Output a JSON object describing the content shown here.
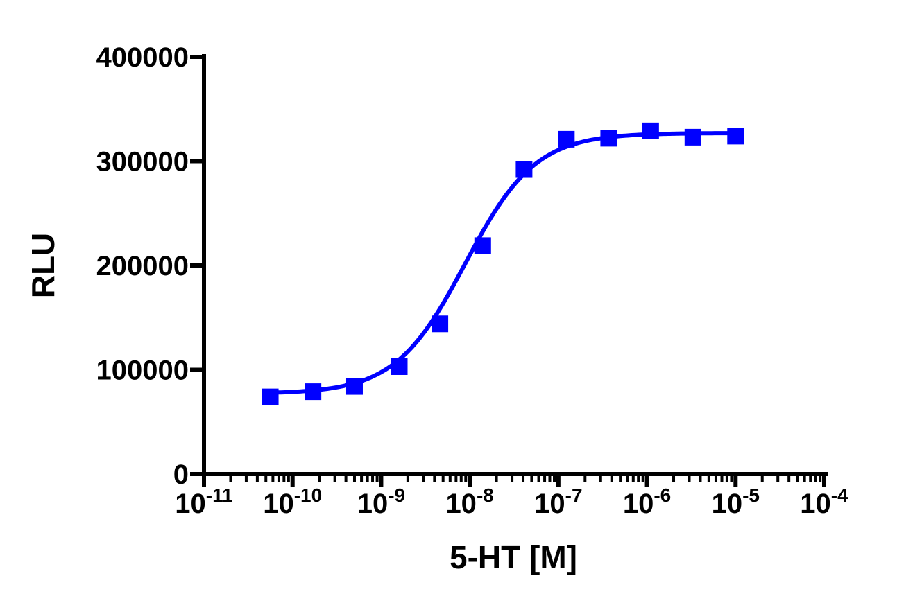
{
  "chart_data": {
    "type": "scatter",
    "title": "",
    "xlabel": "5-HT [M]",
    "ylabel": "RLU",
    "x_scale": "log",
    "xlim": [
      1e-11,
      0.0001
    ],
    "ylim": [
      0,
      400000
    ],
    "x_tick_labels": [
      {
        "base": "10",
        "exp": "-11",
        "value": 1e-11
      },
      {
        "base": "10",
        "exp": "-10",
        "value": 1e-10
      },
      {
        "base": "10",
        "exp": "-9",
        "value": 1e-09
      },
      {
        "base": "10",
        "exp": "-8",
        "value": 1e-08
      },
      {
        "base": "10",
        "exp": "-7",
        "value": 1e-07
      },
      {
        "base": "10",
        "exp": "-6",
        "value": 1e-06
      },
      {
        "base": "10",
        "exp": "-5",
        "value": 1e-05
      },
      {
        "base": "10",
        "exp": "-4",
        "value": 0.0001
      }
    ],
    "y_ticks": [
      {
        "label": "0",
        "value": 0
      },
      {
        "label": "100000",
        "value": 100000
      },
      {
        "label": "200000",
        "value": 200000
      },
      {
        "label": "300000",
        "value": 300000
      },
      {
        "label": "400000",
        "value": 400000
      }
    ],
    "grid": false,
    "color": "#0000ff",
    "marker": "square",
    "series": [
      {
        "x": [
          5.6e-11,
          1.7e-10,
          5e-10,
          1.6e-09,
          4.6e-09,
          1.4e-08,
          4.1e-08,
          1.23e-07,
          3.7e-07,
          1.1e-06,
          3.3e-06,
          1e-05
        ],
        "values": [
          74000,
          79000,
          84000,
          103000,
          144000,
          219000,
          292000,
          321000,
          322000,
          329000,
          323000,
          324000
        ]
      }
    ],
    "fit_curve": {
      "type": "sigmoidal dose-response",
      "bottom": 77000,
      "top": 327000,
      "log_ec50": -8.05,
      "hill_slope": 1.1,
      "x_range": [
        5.6e-11,
        1e-05
      ]
    }
  }
}
